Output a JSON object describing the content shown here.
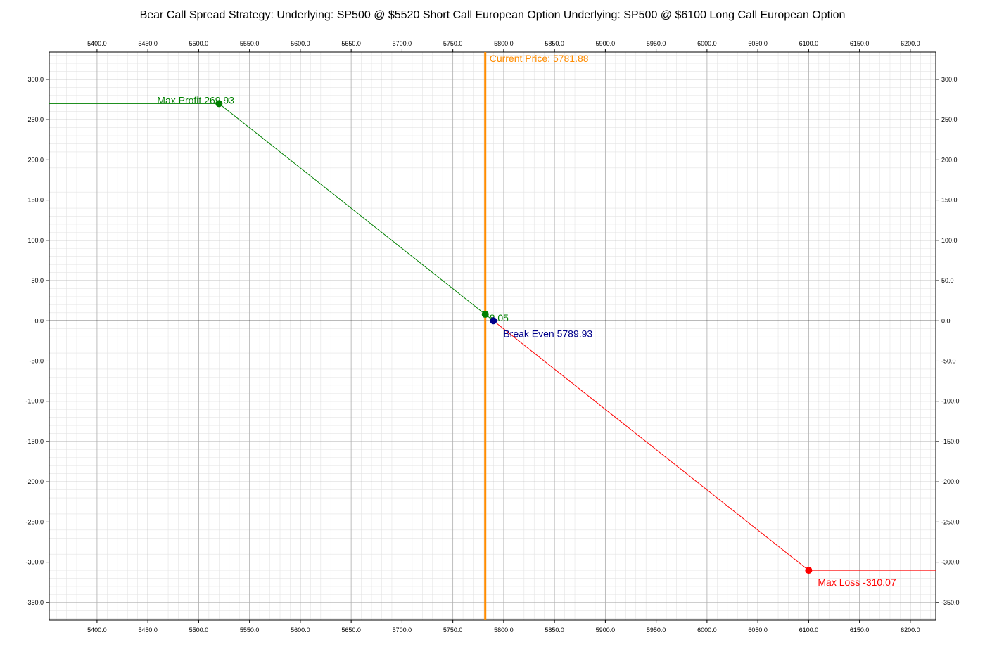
{
  "chart_data": {
    "type": "line",
    "title": "Bear Call Spread Strategy:  Underlying: SP500 @ $5520 Short Call European Option  Underlying: SP500 @ $6100 Long Call European Option",
    "xlabel": "",
    "ylabel": "",
    "xlim": [
      5353,
      5573.0
    ],
    "ylim": [
      -372,
      334
    ],
    "grid": true,
    "x_ticks": [
      5400,
      5450,
      5500,
      5550,
      5600,
      5650,
      5700,
      5750,
      5800,
      5850,
      5900,
      5950,
      6000,
      6050,
      6100,
      6150,
      6200
    ],
    "y_ticks": [
      300,
      250,
      200,
      150,
      100,
      50,
      0,
      -50,
      -100,
      -150,
      -200,
      -250,
      -300,
      -350
    ],
    "tick_decimals": 1,
    "series": [
      {
        "role": "profit",
        "color": "#008000",
        "x": [
          5353,
          5520,
          5789.93
        ],
        "y": [
          269.93,
          269.93,
          0
        ]
      },
      {
        "role": "loss",
        "color": "#ff0000",
        "x": [
          5789.93,
          6100,
          6225
        ],
        "y": [
          0,
          -310.07,
          -310.07
        ]
      }
    ],
    "current_price": {
      "value": 5781.88,
      "label": "Current Price: 5781.88",
      "color": "#ff8c00"
    },
    "annotations": [
      {
        "name": "max-profit",
        "label": "Max Profit 269.93",
        "x": 5520,
        "y": 269.93,
        "color": "#008000"
      },
      {
        "name": "current-pnl",
        "label": "8.05",
        "x": 5781.88,
        "y": 8.05,
        "color": "#008000"
      },
      {
        "name": "break-even",
        "label": "Break Even 5789.93",
        "x": 5789.93,
        "y": 0,
        "color": "#00008b"
      },
      {
        "name": "max-loss",
        "label": "Max Loss -310.07",
        "x": 6100,
        "y": -310.07,
        "color": "#ff0000"
      }
    ]
  }
}
